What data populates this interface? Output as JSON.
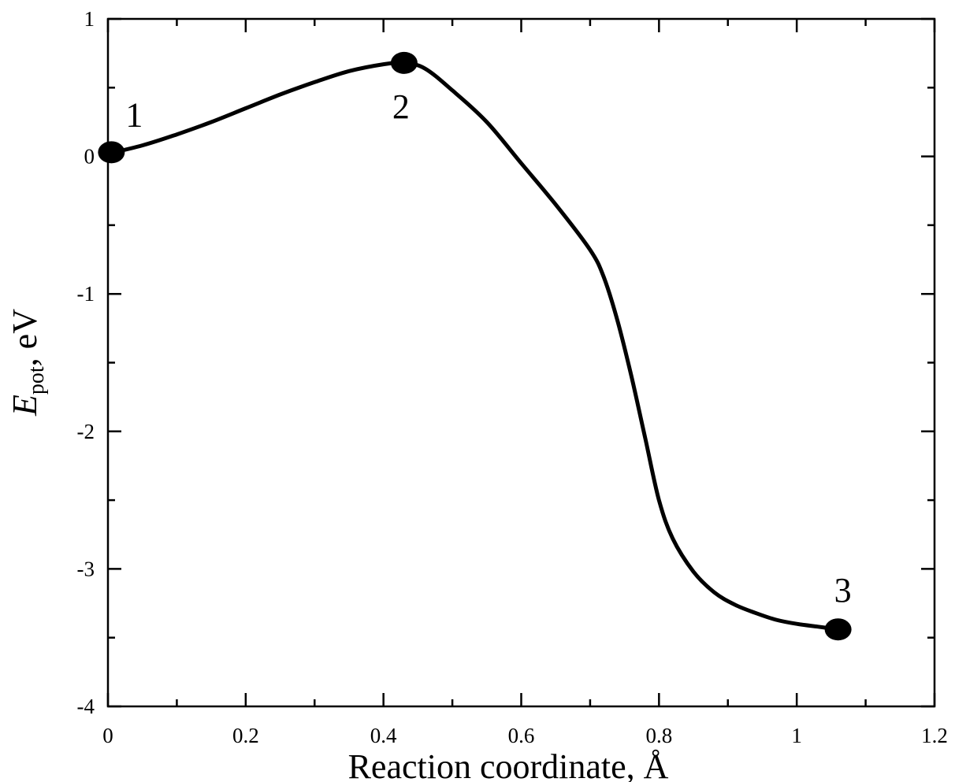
{
  "chart_data": {
    "type": "line",
    "title": "",
    "xlabel": "Reaction coordinate, Å",
    "ylabel_symbol": "E",
    "ylabel_subscript": "pot",
    "ylabel_unit": ", eV",
    "xlim": [
      0,
      1.2
    ],
    "ylim": [
      -4,
      1
    ],
    "x_ticks": [
      0,
      0.2,
      0.4,
      0.6,
      0.8,
      1,
      1.2
    ],
    "x_tick_labels": [
      "0",
      "0.2",
      "0.4",
      "0.6",
      "0.8",
      "1",
      "1.2"
    ],
    "x_minor_step": 0.1,
    "y_ticks": [
      -4,
      -3,
      -2,
      -1,
      0,
      1
    ],
    "y_tick_labels": [
      "-4",
      "-3",
      "-2",
      "-1",
      "0",
      "1"
    ],
    "y_minor_step": 0.5,
    "grid": false,
    "legend": "none",
    "colors": {
      "line": "#000000",
      "marker": "#000000"
    },
    "series": [
      {
        "x": [
          0.0,
          0.05,
          0.1,
          0.15,
          0.2,
          0.25,
          0.3,
          0.35,
          0.4,
          0.43,
          0.46,
          0.5,
          0.55,
          0.6,
          0.65,
          0.7,
          0.72,
          0.74,
          0.76,
          0.78,
          0.8,
          0.82,
          0.85,
          0.88,
          0.91,
          0.94,
          0.97,
          1.0,
          1.03,
          1.06
        ],
        "y": [
          0.02,
          0.08,
          0.16,
          0.25,
          0.35,
          0.45,
          0.54,
          0.62,
          0.67,
          0.68,
          0.64,
          0.48,
          0.25,
          -0.05,
          -0.35,
          -0.68,
          -0.88,
          -1.2,
          -1.6,
          -2.05,
          -2.5,
          -2.78,
          -3.02,
          -3.17,
          -3.26,
          -3.32,
          -3.37,
          -3.4,
          -3.42,
          -3.44
        ]
      }
    ],
    "points": [
      {
        "label": "1",
        "x": 0.005,
        "y": 0.03
      },
      {
        "label": "2",
        "x": 0.43,
        "y": 0.68
      },
      {
        "label": "3",
        "x": 1.06,
        "y": -3.44
      }
    ]
  }
}
